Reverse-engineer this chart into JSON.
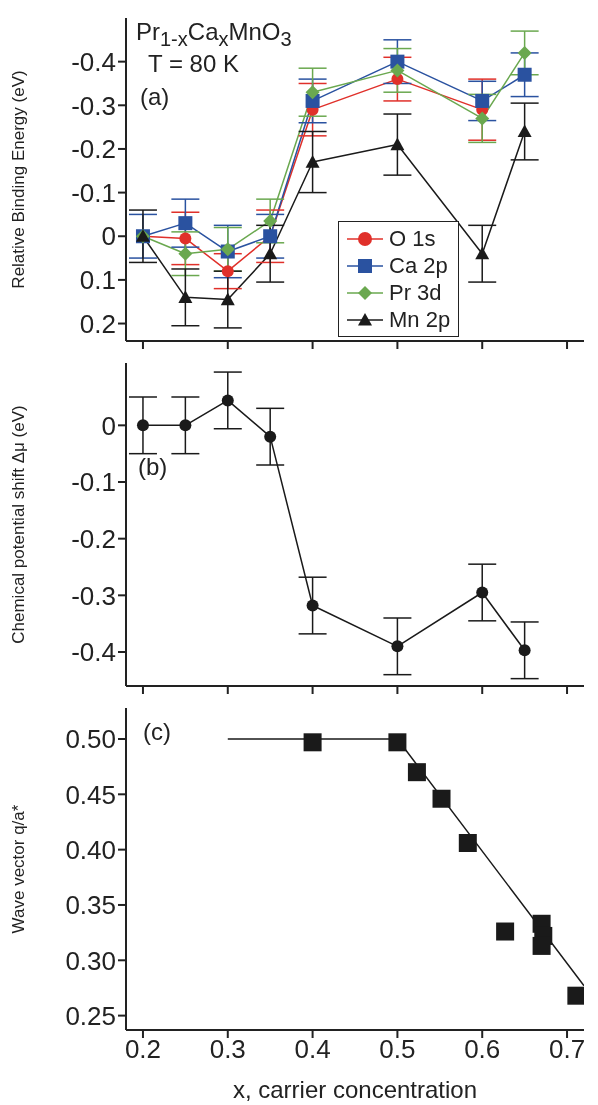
{
  "chart_data": [
    {
      "type": "line",
      "ylabel": "Relative Binding Energy (eV)",
      "annotations": [
        "Pr$_{1-x}$Ca$_{x}$MnO$_{3}$",
        "T = 80 K",
        "(a)"
      ],
      "x": [
        0.2,
        0.25,
        0.3,
        0.35,
        0.4,
        0.5,
        0.6,
        0.65
      ],
      "series": [
        {
          "name": "O 1s",
          "color": "#e0302a",
          "marker": "circle",
          "values": [
            0,
            0.005,
            0.08,
            0,
            -0.29,
            -0.36,
            -0.29,
            null
          ],
          "errors": [
            null,
            0.06,
            0.04,
            0.06,
            0.06,
            0.05,
            0.07,
            null
          ]
        },
        {
          "name": "Ca 2p",
          "color": "#2a52a0",
          "marker": "square",
          "values": [
            0,
            -0.03,
            0.035,
            0,
            -0.31,
            -0.4,
            -0.31,
            -0.37
          ],
          "errors": [
            0.05,
            0.055,
            0.06,
            0.05,
            0.05,
            0.05,
            0.045,
            0.05
          ]
        },
        {
          "name": "Pr 3d",
          "color": "#6aa84f",
          "marker": "diamond",
          "values": [
            0,
            0.04,
            0.03,
            -0.035,
            -0.33,
            -0.38,
            -0.27,
            -0.42
          ],
          "errors": [
            null,
            0.05,
            0.05,
            0.05,
            0.055,
            0.05,
            0.055,
            0.05
          ]
        },
        {
          "name": "Mn 2p",
          "color": "#1a1a1a",
          "marker": "triangle",
          "values": [
            0,
            0.14,
            0.145,
            0.04,
            -0.17,
            -0.21,
            0.04,
            -0.24
          ],
          "errors": [
            0.06,
            0.065,
            0.065,
            0.065,
            0.07,
            0.07,
            0.065,
            0.065
          ]
        }
      ],
      "xlim": [
        0.18,
        0.72
      ],
      "xticks": [
        0.2,
        0.3,
        0.4,
        0.5,
        0.6,
        0.7
      ],
      "ylim": [
        0.24,
        -0.5
      ],
      "yticks": [
        -0.4,
        -0.3,
        -0.2,
        -0.1,
        0,
        0.1,
        0.2
      ],
      "tick_labels": "y",
      "legend": "bottom",
      "grid": false
    },
    {
      "type": "line",
      "ylabel": "Chemical potential shift Δμ (eV)",
      "annotations": [
        "(b)"
      ],
      "x": [
        0.2,
        0.25,
        0.3,
        0.35,
        0.4,
        0.5,
        0.6,
        0.65
      ],
      "series": [
        {
          "color": "#1a1a1a",
          "marker": "circle",
          "values": [
            0,
            0,
            0.044,
            -0.02,
            -0.318,
            -0.39,
            -0.295,
            -0.397
          ],
          "errors": [
            0.05,
            0.05,
            0.05,
            0.05,
            0.05,
            0.05,
            0.05,
            0.05
          ]
        }
      ],
      "xlim": [
        0.18,
        0.72
      ],
      "xticks": [
        0.2,
        0.3,
        0.4,
        0.5,
        0.6,
        0.7
      ],
      "ylim": [
        -0.46,
        0.11
      ],
      "yticks": [
        -0.4,
        -0.3,
        -0.2,
        -0.1,
        0
      ],
      "tick_labels": "y",
      "grid": false
    },
    {
      "type": "scatter",
      "xlabel": "x, carrier concentration",
      "ylabel": "Wave vector q/a*",
      "annotations": [
        "(c)"
      ],
      "series": [
        {
          "color": "#1a1a1a",
          "marker": "square",
          "x": [
            0.4,
            0.5,
            0.523,
            0.552,
            0.583,
            0.627,
            0.67,
            0.672,
            0.67,
            0.711
          ],
          "values": [
            0.497,
            0.497,
            0.47,
            0.446,
            0.406,
            0.326,
            0.333,
            0.322,
            0.313,
            0.268
          ]
        },
        {
          "type": "line",
          "color": "#1a1a1a",
          "marker": "none",
          "x": [
            0.3,
            0.5,
            0.72
          ],
          "values": [
            0.5,
            0.5,
            0.277
          ]
        }
      ],
      "xlim": [
        0.18,
        0.72
      ],
      "xticks": [
        0.2,
        0.3,
        0.4,
        0.5,
        0.6,
        0.7
      ],
      "ylim": [
        0.237,
        0.528
      ],
      "yticks": [
        {
          "value": 0.25,
          "label": "0.25"
        },
        {
          "value": 0.3,
          "label": "0.30"
        },
        {
          "value": 0.35,
          "label": "0.35"
        },
        {
          "value": 0.4,
          "label": "0.40"
        },
        {
          "value": 0.45,
          "label": "0.45"
        },
        {
          "value": 0.5,
          "label": "0.50"
        }
      ],
      "grid": false
    }
  ]
}
